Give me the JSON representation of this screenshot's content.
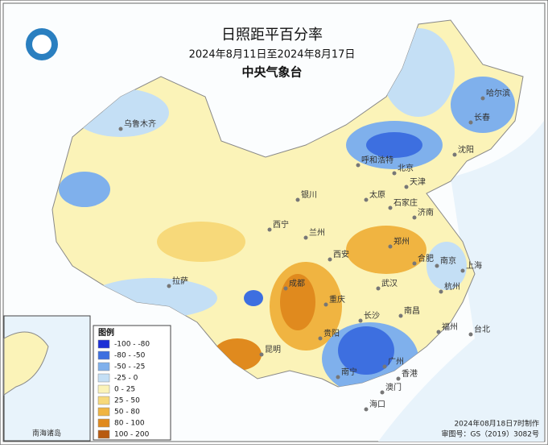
{
  "header": {
    "title": "日照距平百分率",
    "subtitle": "2024年8月11日至2024年8月17日",
    "agency": "中央气象台"
  },
  "legend": {
    "title": "图例",
    "items": [
      {
        "label": "-100 - -80",
        "color": "#1c2fd6"
      },
      {
        "label": "-80 - -50",
        "color": "#3d6fe0"
      },
      {
        "label": "-50 - -25",
        "color": "#7fb0ec"
      },
      {
        "label": "-25 - 0",
        "color": "#c4dff5"
      },
      {
        "label": "0 - 25",
        "color": "#fbf3b8"
      },
      {
        "label": "25 - 50",
        "color": "#f7d97a"
      },
      {
        "label": "50 - 80",
        "color": "#f0b441"
      },
      {
        "label": "80 - 100",
        "color": "#e08a1e"
      },
      {
        "label": "100 - 200",
        "color": "#b85a10"
      }
    ]
  },
  "cities": [
    "乌鲁木齐",
    "哈尔滨",
    "长春",
    "沈阳",
    "呼和浩特",
    "北京",
    "天津",
    "银川",
    "太原",
    "石家庄",
    "济南",
    "西宁",
    "兰州",
    "郑州",
    "西安",
    "合肥",
    "南京",
    "上海",
    "成都",
    "武汉",
    "杭州",
    "拉萨",
    "重庆",
    "南昌",
    "长沙",
    "福州",
    "台北",
    "贵阳",
    "昆明",
    "广州",
    "南宁",
    "香港",
    "澳门",
    "海口"
  ],
  "inset": {
    "label": "南海诸岛"
  },
  "footer": {
    "made": "2024年08月18日7时制作",
    "approval": "审图号：GS（2019）3082号"
  }
}
